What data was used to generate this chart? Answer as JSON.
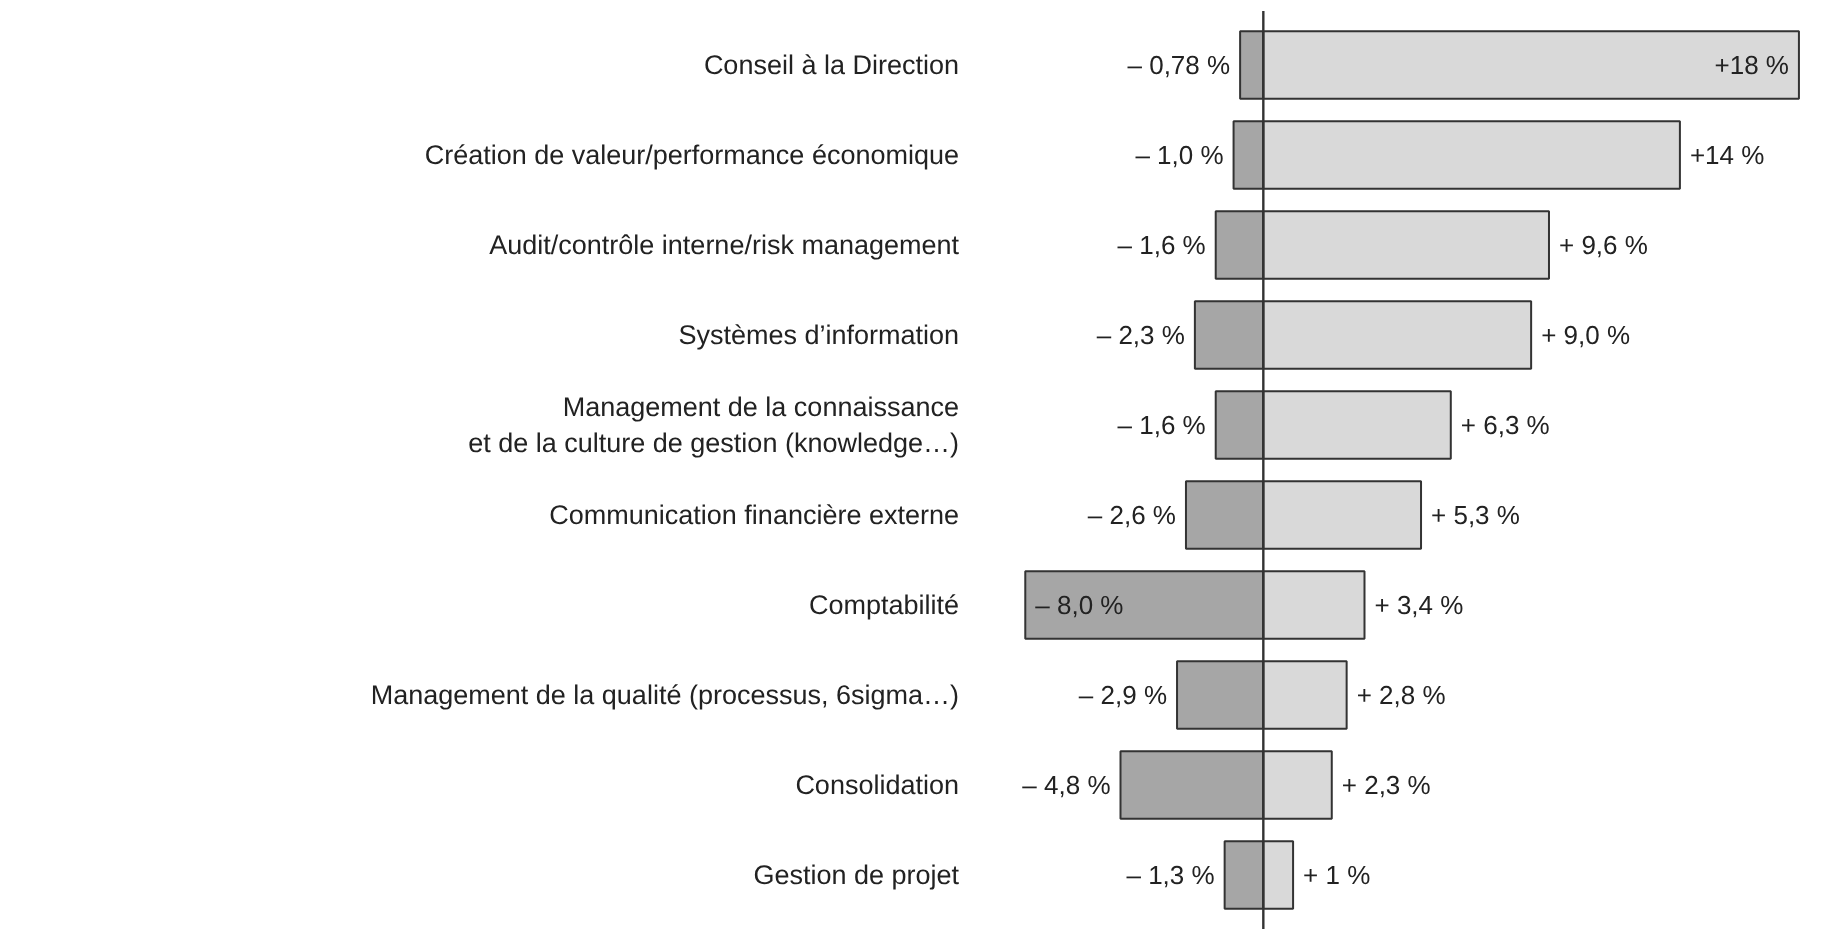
{
  "chart_data": {
    "type": "bar",
    "orientation": "horizontal",
    "stacked": true,
    "categories": [
      "Conseil à la Direction",
      "Création de valeur/performance économique",
      "Audit/contrôle interne/risk management",
      "Systèmes d’information",
      "Management de la connaissance\net de la culture de gestion (knowledge…)",
      "Communication financière externe",
      "Comptabilité",
      "Management de la qualité (processus, 6sigma…)",
      "Consolidation",
      "Gestion de projet"
    ],
    "series": [
      {
        "color": "#a6a6a6",
        "values": [
          -0.78,
          -1.0,
          -1.6,
          -2.3,
          -1.6,
          -2.6,
          -8.0,
          -2.9,
          -4.8,
          -1.3
        ],
        "value_labels": [
          "– 0,78 %",
          "– 1,0 %",
          "– 1,6 %",
          "– 2,3 %",
          "– 1,6 %",
          "– 2,6 %",
          "– 8,0 %",
          "– 2,9 %",
          "– 4,8 %",
          "– 1,3 %"
        ]
      },
      {
        "color": "#d9d9d9",
        "values": [
          18,
          14,
          9.6,
          9.0,
          6.3,
          5.3,
          3.4,
          2.8,
          2.3,
          1
        ],
        "value_labels": [
          "+18 %",
          "+14 %",
          "+ 9,6  %",
          "+ 9,0 %",
          "+ 6,3 %",
          "+ 5,3 %",
          "+ 3,4 %",
          "+ 2,8 %",
          "+ 2,3  %",
          "+ 1  %"
        ]
      }
    ],
    "ref_lines": [
      {
        "axis": "x",
        "value": 0,
        "color": "#333333"
      }
    ],
    "grid": false,
    "tick_labels": "y"
  }
}
